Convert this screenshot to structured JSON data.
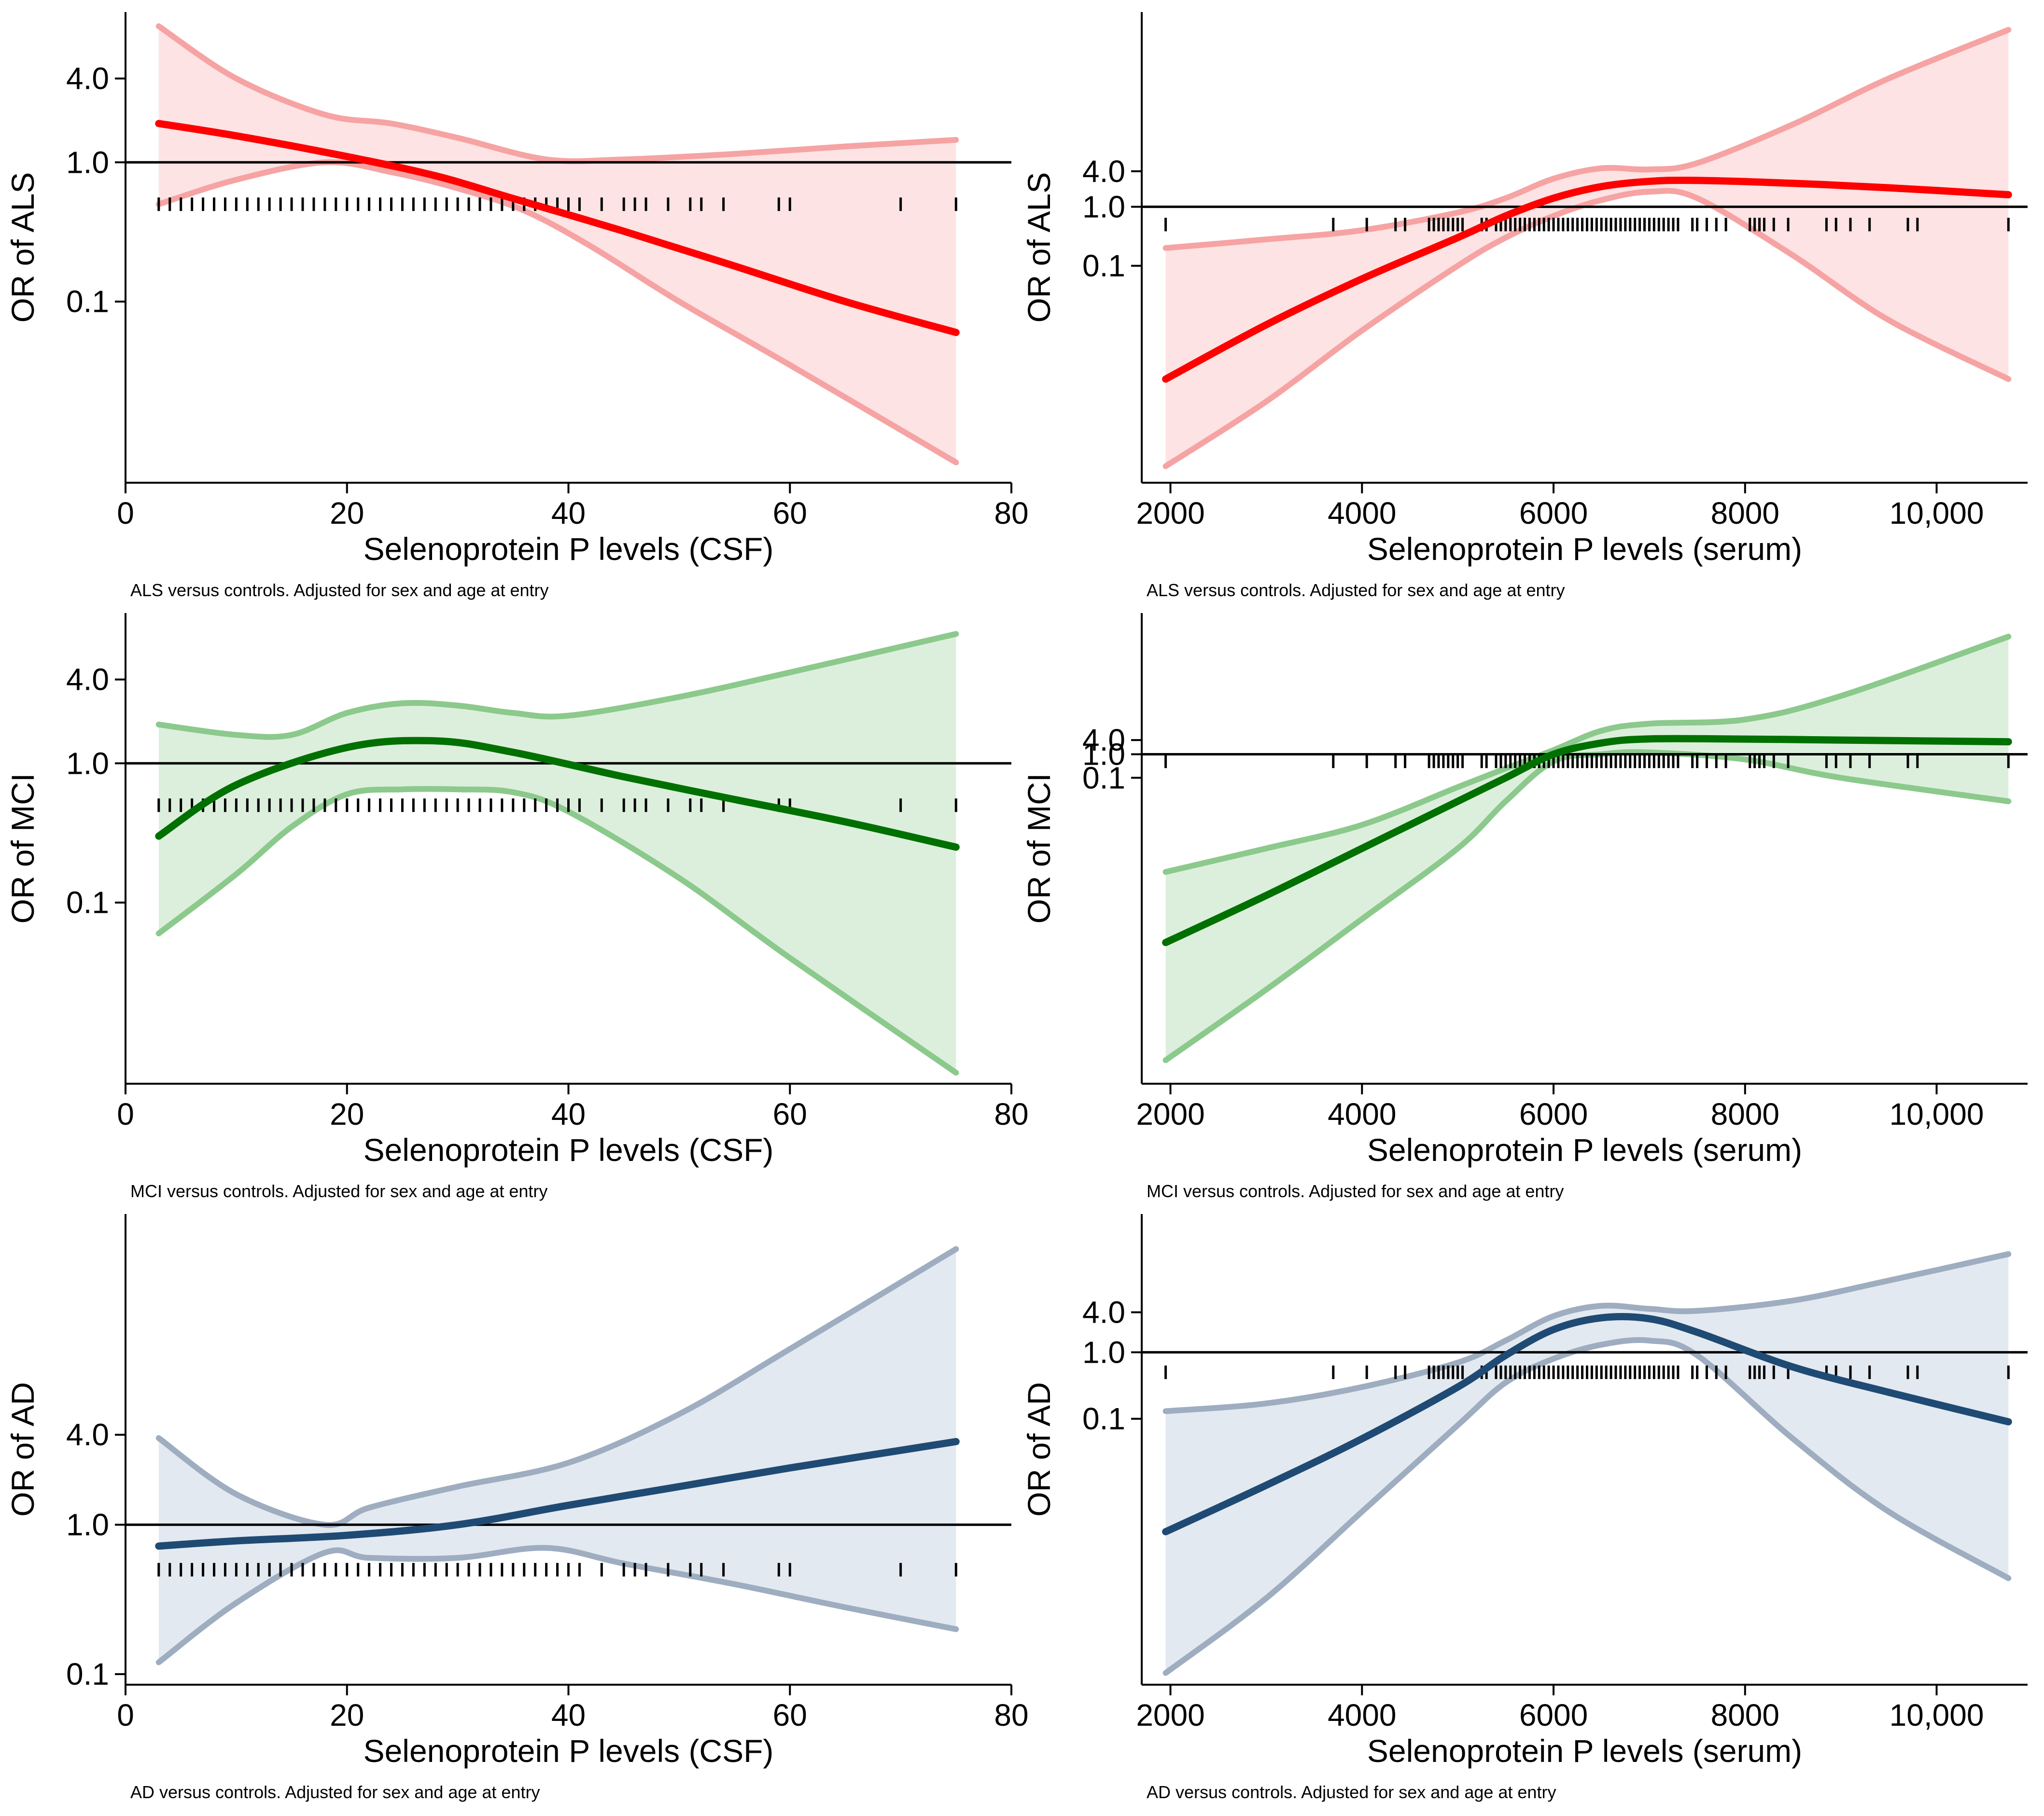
{
  "chart_data": [
    {
      "type": "line",
      "panel": "top-left",
      "xlabel": "Selenoprotein P levels (CSF)",
      "ylabel": "OR of ALS",
      "note": "ALS versus controls. Adjusted for sex and age at entry",
      "xlim": [
        0,
        80
      ],
      "xticks": [
        0,
        20,
        40,
        60,
        80
      ],
      "xtick_labels": [
        "0",
        "20",
        "40",
        "60",
        "80"
      ],
      "yscale": "log",
      "ylim": [
        0.005,
        12
      ],
      "yticks": [
        4.0,
        1.0,
        0.1
      ],
      "ytick_labels": [
        "4.0",
        "1.0",
        "0.1"
      ],
      "reference_y": 1.0,
      "colors": {
        "line": "#ff0000",
        "band": "#f6a3a3",
        "fill": "#fde3e3"
      },
      "series": [
        {
          "name": "OR",
          "x": [
            3,
            10,
            20,
            28,
            35,
            45,
            55,
            65,
            75
          ],
          "values": [
            1.9,
            1.55,
            1.1,
            0.8,
            0.55,
            0.32,
            0.18,
            0.1,
            0.06
          ]
        },
        {
          "name": "Upper 95% CI",
          "x": [
            3,
            10,
            18,
            24,
            30,
            38,
            45,
            55,
            65,
            75
          ],
          "values": [
            9.5,
            4.0,
            2.2,
            1.9,
            1.5,
            1.05,
            1.05,
            1.15,
            1.3,
            1.45
          ]
        },
        {
          "name": "Lower 95% CI",
          "x": [
            3,
            10,
            18,
            24,
            30,
            36,
            42,
            50,
            60,
            75
          ],
          "values": [
            0.5,
            0.75,
            1.0,
            0.85,
            0.65,
            0.45,
            0.25,
            0.1,
            0.035,
            0.007
          ]
        }
      ],
      "rug_y": 0.5,
      "rug_x": [
        3,
        4,
        5,
        6,
        7,
        8,
        9,
        10,
        11,
        12,
        13,
        14,
        15,
        16,
        17,
        18,
        19,
        20,
        21,
        22,
        23,
        24,
        25,
        26,
        27,
        28,
        29,
        30,
        31,
        32,
        33,
        34,
        35,
        36,
        37,
        38,
        39,
        40,
        41,
        43,
        45,
        46,
        47,
        49,
        51,
        52,
        54,
        59,
        60,
        70,
        75
      ]
    },
    {
      "type": "line",
      "panel": "top-right",
      "xlabel": "Selenoprotein P levels (serum)",
      "ylabel": "OR of ALS",
      "note": "ALS versus controls. Adjusted for sex and age at entry",
      "xlim": [
        1700,
        10950
      ],
      "xticks": [
        2000,
        4000,
        6000,
        8000,
        10000
      ],
      "xtick_labels": [
        "2000",
        "4000",
        "6000",
        "8000",
        "10,000"
      ],
      "yscale": "log",
      "ylim": [
        2.1e-05,
        2000
      ],
      "yticks": [
        4.0,
        1.0,
        0.1
      ],
      "ytick_labels": [
        "4.0",
        "1.0",
        "0.1"
      ],
      "reference_y": 1.0,
      "colors": {
        "line": "#ff0000",
        "band": "#f6a3a3",
        "fill": "#fde3e3"
      },
      "series": [
        {
          "name": "OR",
          "x": [
            1950,
            3000,
            4000,
            5000,
            5500,
            6000,
            6500,
            7000,
            7500,
            8500,
            9500,
            10750
          ],
          "values": [
            0.0012,
            0.01,
            0.06,
            0.3,
            0.7,
            1.4,
            2.2,
            2.7,
            2.8,
            2.5,
            2.1,
            1.6
          ]
        },
        {
          "name": "Upper 95% CI",
          "x": [
            1950,
            3000,
            4000,
            5000,
            5500,
            6000,
            6500,
            7000,
            7500,
            8500,
            9500,
            10750
          ],
          "values": [
            0.2,
            0.28,
            0.4,
            0.8,
            1.4,
            3.0,
            4.5,
            4.3,
            5.5,
            25,
            150,
            1000
          ]
        },
        {
          "name": "Lower 95% CI",
          "x": [
            1950,
            3000,
            4000,
            5000,
            5500,
            6000,
            6500,
            7000,
            7500,
            8500,
            9500,
            10750
          ],
          "values": [
            4e-05,
            0.0005,
            0.008,
            0.1,
            0.3,
            0.7,
            1.3,
            1.8,
            1.4,
            0.15,
            0.012,
            0.0012
          ]
        }
      ],
      "rug_y": 0.5,
      "rug_x": [
        1950,
        3700,
        4050,
        4350,
        4450,
        4700,
        4750,
        4800,
        4850,
        4900,
        4950,
        5000,
        5050,
        5250,
        5300,
        5400,
        5450,
        5500,
        5550,
        5600,
        5650,
        5700,
        5750,
        5800,
        5850,
        5900,
        5950,
        6000,
        6050,
        6100,
        6150,
        6200,
        6250,
        6300,
        6350,
        6400,
        6450,
        6500,
        6550,
        6600,
        6650,
        6700,
        6750,
        6800,
        6850,
        6900,
        6950,
        7000,
        7050,
        7100,
        7150,
        7200,
        7250,
        7300,
        7450,
        7500,
        7600,
        7700,
        7800,
        8050,
        8100,
        8150,
        8200,
        8300,
        8450,
        8850,
        8950,
        9100,
        9300,
        9700,
        9800,
        10750
      ]
    },
    {
      "type": "line",
      "panel": "middle-left",
      "xlabel": "Selenoprotein P levels (CSF)",
      "ylabel": "OR of MCI",
      "note": "MCI versus controls. Adjusted for sex and age at entry",
      "xlim": [
        0,
        80
      ],
      "xticks": [
        0,
        20,
        40,
        60,
        80
      ],
      "xtick_labels": [
        "0",
        "20",
        "40",
        "60",
        "80"
      ],
      "yscale": "log",
      "ylim": [
        0.005,
        12
      ],
      "yticks": [
        4.0,
        1.0,
        0.1
      ],
      "ytick_labels": [
        "4.0",
        "1.0",
        "0.1"
      ],
      "reference_y": 1.0,
      "colors": {
        "line": "#007000",
        "band": "#8cc98c",
        "fill": "#dcefdc"
      },
      "series": [
        {
          "name": "OR",
          "x": [
            3,
            10,
            20,
            28,
            35,
            45,
            55,
            65,
            75
          ],
          "values": [
            0.3,
            0.7,
            1.3,
            1.45,
            1.2,
            0.8,
            0.55,
            0.38,
            0.25
          ]
        },
        {
          "name": "Upper 95% CI",
          "x": [
            3,
            10,
            15,
            20,
            25,
            30,
            35,
            40,
            50,
            60,
            75
          ],
          "values": [
            1.9,
            1.6,
            1.6,
            2.3,
            2.7,
            2.6,
            2.3,
            2.2,
            3.0,
            4.5,
            8.5
          ]
        },
        {
          "name": "Lower 95% CI",
          "x": [
            3,
            10,
            15,
            20,
            25,
            30,
            35,
            40,
            50,
            60,
            75
          ],
          "values": [
            0.06,
            0.16,
            0.35,
            0.6,
            0.65,
            0.65,
            0.62,
            0.45,
            0.15,
            0.04,
            0.006
          ]
        }
      ],
      "rug_y": 0.5,
      "rug_x": [
        3,
        4,
        5,
        6,
        7,
        8,
        9,
        10,
        11,
        12,
        13,
        14,
        15,
        16,
        17,
        18,
        19,
        20,
        21,
        22,
        23,
        24,
        25,
        26,
        27,
        28,
        29,
        30,
        31,
        32,
        33,
        34,
        35,
        36,
        37,
        38,
        39,
        40,
        41,
        43,
        45,
        46,
        47,
        49,
        51,
        52,
        54,
        59,
        60,
        70,
        75
      ]
    },
    {
      "type": "line",
      "panel": "middle-right",
      "xlabel": "Selenoprotein P levels (serum)",
      "ylabel": "OR of MCI",
      "note": "MCI versus controls. Adjusted for sex and age at entry",
      "xlim": [
        1700,
        10950
      ],
      "xticks": [
        2000,
        4000,
        6000,
        8000,
        10000
      ],
      "xtick_labels": [
        "2000",
        "4000",
        "6000",
        "8000",
        "10,000"
      ],
      "yscale": "log",
      "ylim": [
        1e-14,
        1000000
      ],
      "yticks": [
        4.0,
        1.0,
        0.1
      ],
      "ytick_labels": [
        "4.0",
        "1.0",
        "0.1"
      ],
      "reference_y": 1.0,
      "colors": {
        "line": "#007000",
        "band": "#8cc98c",
        "fill": "#dcefdc"
      },
      "series": [
        {
          "name": "OR",
          "x": [
            1950,
            3000,
            4000,
            5000,
            5500,
            6000,
            6500,
            7000,
            8000,
            9000,
            10750
          ],
          "values": [
            1e-08,
            1e-06,
            0.0001,
            0.01,
            0.1,
            1.0,
            3.0,
            4.5,
            4.4,
            4.0,
            3.4
          ]
        },
        {
          "name": "Upper 95% CI",
          "x": [
            1950,
            3000,
            4000,
            5000,
            5500,
            6000,
            6500,
            7000,
            8000,
            9000,
            10750
          ],
          "values": [
            1e-05,
            0.0001,
            0.001,
            0.04,
            0.25,
            1.5,
            10,
            20,
            30,
            300,
            100000
          ]
        },
        {
          "name": "Lower 95% CI",
          "x": [
            1950,
            3000,
            4000,
            5000,
            5500,
            6000,
            6500,
            7000,
            8000,
            9000,
            10750
          ],
          "values": [
            1e-13,
            1e-10,
            1e-07,
            0.0001,
            0.01,
            0.5,
            1.0,
            1.2,
            0.6,
            0.1,
            0.01
          ]
        }
      ],
      "rug_y": 0.5,
      "rug_x": [
        1950,
        3700,
        4050,
        4350,
        4450,
        4700,
        4750,
        4800,
        4850,
        4900,
        4950,
        5000,
        5050,
        5250,
        5300,
        5400,
        5450,
        5500,
        5550,
        5600,
        5650,
        5700,
        5750,
        5800,
        5850,
        5900,
        5950,
        6000,
        6050,
        6100,
        6150,
        6200,
        6250,
        6300,
        6350,
        6400,
        6450,
        6500,
        6550,
        6600,
        6650,
        6700,
        6750,
        6800,
        6850,
        6900,
        6950,
        7000,
        7050,
        7100,
        7150,
        7200,
        7250,
        7300,
        7450,
        7500,
        7600,
        7700,
        7800,
        8050,
        8100,
        8150,
        8200,
        8300,
        8450,
        8850,
        8950,
        9100,
        9300,
        9700,
        9800,
        10750
      ]
    },
    {
      "type": "line",
      "panel": "bottom-left",
      "xlabel": "Selenoprotein P levels (CSF)",
      "ylabel": "OR of AD",
      "note": "AD versus controls. Adjusted for sex and age at entry",
      "xlim": [
        0,
        80
      ],
      "xticks": [
        0,
        20,
        40,
        60,
        80
      ],
      "xtick_labels": [
        "0",
        "20",
        "40",
        "60",
        "80"
      ],
      "yscale": "log",
      "ylim": [
        0.085,
        120
      ],
      "yticks": [
        4.0,
        1.0,
        0.1
      ],
      "ytick_labels": [
        "4.0",
        "1.0",
        "0.1"
      ],
      "reference_y": 1.0,
      "colors": {
        "line": "#1f4a73",
        "band": "#9eadc0",
        "fill": "#e3e9f0"
      },
      "series": [
        {
          "name": "OR",
          "x": [
            3,
            10,
            20,
            30,
            40,
            50,
            60,
            75
          ],
          "values": [
            0.72,
            0.78,
            0.85,
            1.0,
            1.35,
            1.8,
            2.4,
            3.6
          ]
        },
        {
          "name": "Upper 95% CI",
          "x": [
            3,
            10,
            18,
            22,
            30,
            40,
            50,
            60,
            75
          ],
          "values": [
            3.8,
            1.6,
            1.0,
            1.3,
            1.8,
            2.6,
            5.5,
            15,
            70
          ]
        },
        {
          "name": "Lower 95% CI",
          "x": [
            3,
            10,
            18,
            22,
            30,
            38,
            45,
            55,
            65,
            75
          ],
          "values": [
            0.12,
            0.3,
            0.65,
            0.6,
            0.6,
            0.7,
            0.55,
            0.4,
            0.28,
            0.2
          ]
        }
      ],
      "rug_y": 0.5,
      "rug_x": [
        3,
        4,
        5,
        6,
        7,
        8,
        9,
        10,
        11,
        12,
        13,
        14,
        15,
        16,
        17,
        18,
        19,
        20,
        21,
        22,
        23,
        24,
        25,
        26,
        27,
        28,
        29,
        30,
        31,
        32,
        33,
        34,
        35,
        36,
        37,
        38,
        39,
        40,
        41,
        43,
        45,
        46,
        47,
        49,
        51,
        52,
        54,
        59,
        60,
        70,
        75
      ]
    },
    {
      "type": "line",
      "panel": "bottom-right",
      "xlabel": "Selenoprotein P levels (serum)",
      "ylabel": "OR of AD",
      "note": "AD versus controls. Adjusted for sex and age at entry",
      "xlim": [
        1700,
        10950
      ],
      "xticks": [
        2000,
        4000,
        6000,
        8000,
        10000
      ],
      "xtick_labels": [
        "2000",
        "4000",
        "6000",
        "8000",
        "10,000"
      ],
      "yscale": "log",
      "ylim": [
        1e-05,
        120
      ],
      "yticks": [
        4.0,
        1.0,
        0.1
      ],
      "ytick_labels": [
        "4.0",
        "1.0",
        "0.1"
      ],
      "reference_y": 1.0,
      "colors": {
        "line": "#1f4a73",
        "band": "#9eadc0",
        "fill": "#e3e9f0"
      },
      "series": [
        {
          "name": "OR",
          "x": [
            1950,
            3000,
            4000,
            5000,
            5500,
            6000,
            6500,
            7000,
            7500,
            8500,
            9500,
            10750
          ],
          "values": [
            0.002,
            0.01,
            0.05,
            0.3,
            0.9,
            2.2,
            3.3,
            3.2,
            2.0,
            0.6,
            0.25,
            0.09
          ]
        },
        {
          "name": "Upper 95% CI",
          "x": [
            1950,
            3000,
            4000,
            5000,
            5500,
            6000,
            6500,
            7000,
            7500,
            8500,
            9500,
            10750
          ],
          "values": [
            0.13,
            0.17,
            0.3,
            0.7,
            1.5,
            3.5,
            5.0,
            4.5,
            4.2,
            6.0,
            12,
            30
          ]
        },
        {
          "name": "Lower 95% CI",
          "x": [
            1950,
            3000,
            4000,
            5000,
            5500,
            6000,
            6500,
            7000,
            7500,
            8500,
            9500,
            10750
          ],
          "values": [
            1.5e-05,
            0.0002,
            0.004,
            0.08,
            0.35,
            0.8,
            1.3,
            1.5,
            0.9,
            0.05,
            0.004,
            0.0004
          ]
        }
      ],
      "rug_y": 0.5,
      "rug_x": [
        1950,
        3700,
        4050,
        4350,
        4450,
        4700,
        4750,
        4800,
        4850,
        4900,
        4950,
        5000,
        5050,
        5250,
        5300,
        5400,
        5450,
        5500,
        5550,
        5600,
        5650,
        5700,
        5750,
        5800,
        5850,
        5900,
        5950,
        6000,
        6050,
        6100,
        6150,
        6200,
        6250,
        6300,
        6350,
        6400,
        6450,
        6500,
        6550,
        6600,
        6650,
        6700,
        6750,
        6800,
        6850,
        6900,
        6950,
        7000,
        7050,
        7100,
        7150,
        7200,
        7250,
        7300,
        7450,
        7500,
        7600,
        7700,
        7800,
        8050,
        8100,
        8150,
        8200,
        8300,
        8450,
        8850,
        8950,
        9100,
        9300,
        9700,
        9800,
        10750
      ]
    }
  ]
}
